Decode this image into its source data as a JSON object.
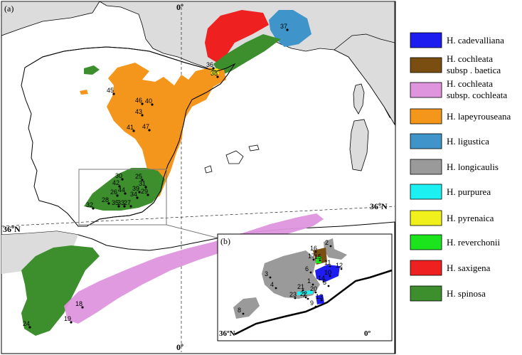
{
  "panel_a_label": "(a)",
  "panel_b_label": "(b)",
  "graticule": {
    "prime_meridian_top": "0º",
    "prime_meridian_bottom": "0º",
    "lat_36_left": "36ºN",
    "lat_36_right": "36ºN",
    "inset_lat_36": "36ºN",
    "inset_meridian": "0º"
  },
  "colors": {
    "sea": "#ffffff",
    "land": "#dcdcdc",
    "study_land": "#ffffff",
    "cadevalliana": "#1d1df0",
    "cochleata_baetica": "#7a4e10",
    "cochleata_cochleata": "#de95de",
    "lapeyrouseana": "#f4961c",
    "ligustica": "#3f94c9",
    "longicaulis": "#9a9a9a",
    "purpurea": "#1cf0f0",
    "pyrenaica": "#f0f01c",
    "reverchonii": "#1ce41c",
    "saxigena": "#ee2020",
    "spinosa": "#3c8f2c"
  },
  "legend": [
    {
      "key": "cadevalliana",
      "lines": [
        "H. cadevalliana"
      ]
    },
    {
      "key": "cochleata_baetica",
      "lines": [
        "H. cochleata",
        "subsp . baetica"
      ]
    },
    {
      "key": "cochleata_cochleata",
      "lines": [
        "H. cochleata",
        "subsp.  cochleata"
      ]
    },
    {
      "key": "lapeyrouseana",
      "lines": [
        "H. lapeyrouseana"
      ]
    },
    {
      "key": "ligustica",
      "lines": [
        "H. ligustica"
      ]
    },
    {
      "key": "longicaulis",
      "lines": [
        "H. longicaulis"
      ]
    },
    {
      "key": "purpurea",
      "lines": [
        "H. purpurea"
      ]
    },
    {
      "key": "pyrenaica",
      "lines": [
        "H. pyrenaica"
      ]
    },
    {
      "key": "reverchonii",
      "lines": [
        "H. reverchonii"
      ]
    },
    {
      "key": "saxigena",
      "lines": [
        "H. saxigena"
      ]
    },
    {
      "key": "spinosa",
      "lines": [
        "H. spinosa"
      ]
    }
  ],
  "sites_main": [
    "36",
    "38",
    "37",
    "45",
    "46",
    "40",
    "43",
    "47",
    "41",
    "30",
    "25",
    "42",
    "31",
    "39",
    "44",
    "26",
    "34",
    "29",
    "28",
    "35",
    "33",
    "27",
    "32",
    "18",
    "19",
    "24"
  ],
  "sites_inset": [
    "16",
    "17",
    "15",
    "2",
    "11",
    "12",
    "10",
    "6",
    "3",
    "4",
    "14",
    "1",
    "5",
    "21",
    "20",
    "22",
    "23",
    "13",
    "9",
    "7",
    "8"
  ]
}
